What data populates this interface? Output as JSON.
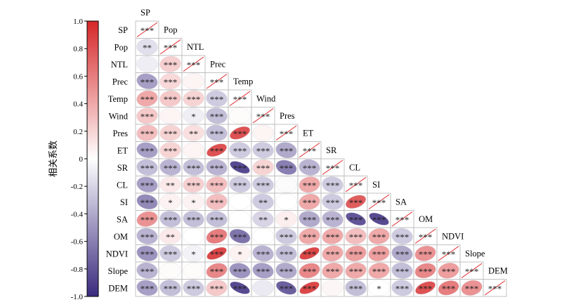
{
  "chart_data": {
    "type": "heatmap",
    "colorbar": {
      "label": "相关系数",
      "min": -1.0,
      "max": 1.0,
      "ticks": [
        "1.0",
        "0.8",
        "0.6",
        "0.4",
        "0.2",
        "0",
        "-0.2",
        "-0.4",
        "-0.6",
        "-0.8",
        "-1.0"
      ],
      "colors": {
        "negative": "#3b2a7e",
        "neutral": "#ffffff",
        "positive": "#d62728"
      }
    },
    "variables": [
      "SP",
      "Pop",
      "NTL",
      "Prec",
      "Temp",
      "Wind",
      "Pres",
      "ET",
      "SR",
      "CL",
      "SI",
      "SA",
      "OM",
      "NDVI",
      "Slope",
      "DEM"
    ],
    "correlations": [
      [],
      [
        -0.15
      ],
      [
        -0.08,
        0.22
      ],
      [
        -0.45,
        0.18,
        0.05
      ],
      [
        0.4,
        0.25,
        0.2,
        -0.25
      ],
      [
        0.25,
        0.05,
        -0.08,
        -0.3,
        0.02
      ],
      [
        0.3,
        0.2,
        0.15,
        -0.3,
        0.8,
        0.05
      ],
      [
        -0.45,
        0.2,
        0.05,
        0.8,
        -0.25,
        -0.25,
        -0.4
      ],
      [
        -0.3,
        -0.35,
        -0.3,
        -0.35,
        -0.85,
        0.2,
        -0.6,
        -0.35
      ],
      [
        -0.45,
        0.1,
        0.22,
        0.3,
        -0.25,
        -0.25,
        -0.02,
        0.4,
        -0.25
      ],
      [
        -0.55,
        0.06,
        0.06,
        0.3,
        0.0,
        -0.25,
        0.0,
        0.4,
        -0.25,
        0.75
      ],
      [
        0.5,
        -0.3,
        -0.3,
        -0.3,
        0.0,
        -0.2,
        0.08,
        -0.4,
        -0.35,
        -0.8,
        -0.85
      ],
      [
        -0.35,
        0.1,
        0.0,
        0.6,
        -0.65,
        0.0,
        -0.25,
        0.4,
        0.4,
        0.3,
        0.4,
        -0.25
      ],
      [
        -0.5,
        -0.25,
        -0.06,
        0.85,
        0.06,
        -0.35,
        -0.3,
        0.85,
        0.4,
        0.45,
        0.45,
        -0.4,
        0.5
      ],
      [
        -0.35,
        0.02,
        0.02,
        0.55,
        -0.5,
        -0.45,
        -0.4,
        0.55,
        0.4,
        0.4,
        0.4,
        -0.3,
        0.55,
        0.45
      ],
      [
        -0.45,
        -0.3,
        -0.25,
        0.25,
        -0.85,
        -0.1,
        -0.75,
        0.85,
        0.04,
        -0.3,
        0.0,
        -0.25,
        0.8,
        0.6,
        0.5
      ]
    ],
    "significance": [
      [],
      [
        "**"
      ],
      [
        "",
        "***"
      ],
      [
        "***",
        "***",
        ""
      ],
      [
        "***",
        "***",
        "***",
        "***"
      ],
      [
        "***",
        "",
        "*",
        "***",
        ""
      ],
      [
        "***",
        "***",
        "**",
        "***",
        "***",
        ""
      ],
      [
        "***",
        "***",
        "",
        "***",
        "***",
        "***",
        "***"
      ],
      [
        "***",
        "***",
        "***",
        "***",
        "***",
        "***",
        "***",
        "***"
      ],
      [
        "***",
        "**",
        "***",
        "***",
        "***",
        "***",
        "",
        "***",
        "***"
      ],
      [
        "***",
        "*",
        "*",
        "***",
        "",
        "**",
        "",
        "***",
        "***",
        "***"
      ],
      [
        "***",
        "***",
        "***",
        "***",
        "",
        "**",
        "*",
        "***",
        "***",
        "***",
        "***"
      ],
      [
        "***",
        "**",
        "",
        "***",
        "***",
        "",
        "***",
        "***",
        "***",
        "***",
        "***",
        "***"
      ],
      [
        "***",
        "***",
        "*",
        "***",
        "*",
        "***",
        "***",
        "***",
        "***",
        "***",
        "***",
        "***",
        "***"
      ],
      [
        "***",
        "",
        "",
        "***",
        "***",
        "***",
        "***",
        "***",
        "***",
        "***",
        "***",
        "***",
        "***",
        "***"
      ],
      [
        "***",
        "***",
        "***",
        "***",
        "***",
        "",
        "***",
        "***",
        "",
        "***",
        "*",
        "***",
        "***",
        "***",
        "***"
      ]
    ],
    "diagonal_label": "***"
  }
}
